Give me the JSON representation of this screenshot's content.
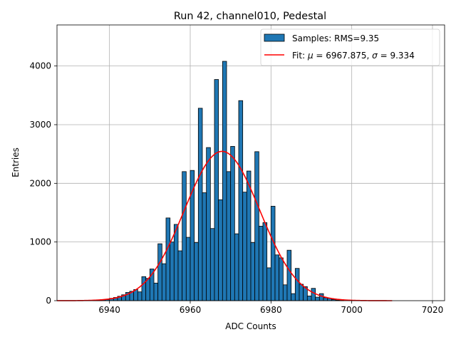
{
  "chart_data": {
    "type": "bar",
    "title": "Run 42, channel010, Pedestal",
    "xlabel": "ADC Counts",
    "ylabel": "Entries",
    "xlim": [
      6927,
      7023
    ],
    "ylim": [
      0,
      4700
    ],
    "xticks": [
      6940,
      6960,
      6980,
      7000,
      7020
    ],
    "yticks": [
      0,
      1000,
      2000,
      3000,
      4000
    ],
    "grid": true,
    "legend_position": "top-right",
    "bin_width": 1,
    "bar_color": "#1f77b4",
    "fit_color": "#ff0000",
    "histogram": {
      "name": "Samples: RMS=9.35",
      "bin_left_edges": [
        6936,
        6937,
        6938,
        6939,
        6940,
        6941,
        6942,
        6943,
        6944,
        6945,
        6946,
        6947,
        6948,
        6949,
        6950,
        6951,
        6952,
        6953,
        6954,
        6955,
        6956,
        6957,
        6958,
        6959,
        6960,
        6961,
        6962,
        6963,
        6964,
        6965,
        6966,
        6967,
        6968,
        6969,
        6970,
        6971,
        6972,
        6973,
        6974,
        6975,
        6976,
        6977,
        6978,
        6979,
        6980,
        6981,
        6982,
        6983,
        6984,
        6985,
        6986,
        6987,
        6988,
        6989,
        6990,
        6991,
        6992,
        6993,
        6994,
        6995,
        6996,
        6997
      ],
      "values": [
        5,
        10,
        15,
        20,
        40,
        55,
        75,
        100,
        140,
        160,
        190,
        150,
        410,
        380,
        540,
        300,
        970,
        630,
        1410,
        1000,
        1300,
        850,
        2200,
        1080,
        2220,
        990,
        3280,
        1840,
        2610,
        1230,
        3770,
        1720,
        4080,
        2200,
        2630,
        1140,
        3410,
        1850,
        2210,
        990,
        2540,
        1270,
        1330,
        560,
        1610,
        780,
        730,
        270,
        860,
        120,
        550,
        280,
        240,
        80,
        210,
        60,
        120,
        50,
        40,
        20,
        10,
        5
      ]
    },
    "fit": {
      "name": "Fit: μ = 6967.875, σ = 9.334",
      "label_prefix": "Fit: ",
      "mu_label": "6967.875",
      "sigma_label": "9.334",
      "mu": 6967.875,
      "sigma": 9.334,
      "amplitude": 2545,
      "x_range": [
        6927,
        7010
      ]
    }
  }
}
